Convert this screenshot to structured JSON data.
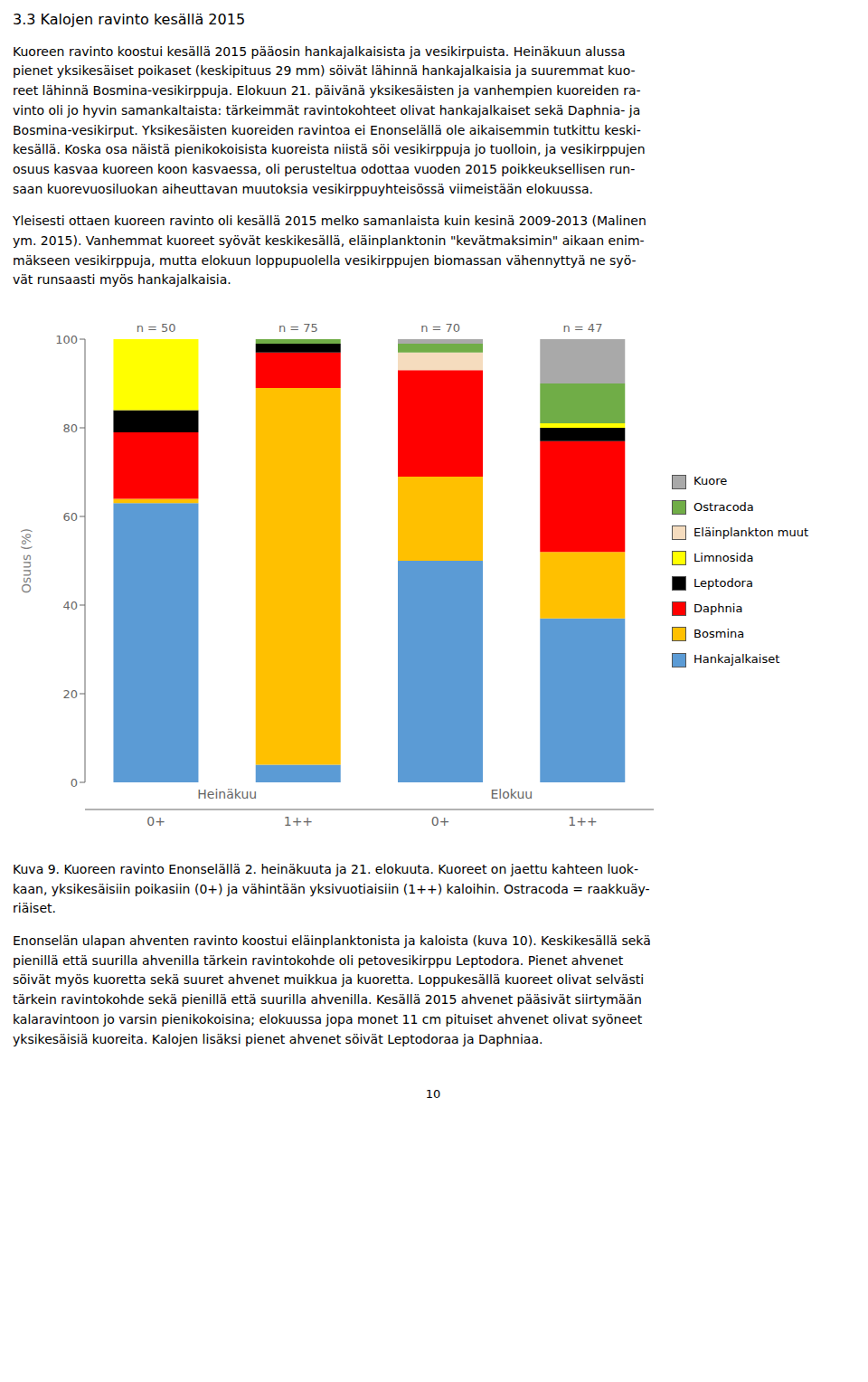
{
  "chart_data": {
    "type": "bar",
    "title": "3.3 Kalojen ravinto kesällä 2015",
    "categories": [
      "0+",
      "1++",
      "0+",
      "1++"
    ],
    "bar_labels": [
      "n = 50",
      "n = 75",
      "n = 70",
      "n = 47"
    ],
    "groups": [
      "Heinäkuu",
      "Heinäkuu",
      "Elokuu",
      "Elokuu"
    ],
    "ylabel": "Osuus (%)",
    "ylim": [
      0,
      100
    ],
    "yticks": [
      0,
      20,
      40,
      60,
      80,
      100
    ],
    "stacked": true,
    "grid": false,
    "legend": "right",
    "series": [
      {
        "name": "Hankajalkaiset",
        "color": "#5B9BD5",
        "values": [
          63,
          4,
          50,
          37
        ]
      },
      {
        "name": "Bosmina",
        "color": "#FFC000",
        "values": [
          1,
          85,
          19,
          15
        ]
      },
      {
        "name": "Daphnia",
        "color": "#FF0000",
        "values": [
          15,
          8,
          24,
          25
        ]
      },
      {
        "name": "Leptodora",
        "color": "#000000",
        "values": [
          5,
          2,
          0,
          3
        ]
      },
      {
        "name": "Limnosida",
        "color": "#FFFF00",
        "values": [
          16,
          0,
          0,
          1
        ]
      },
      {
        "name": "Eläinplankton muut",
        "color": "#F5DCBE",
        "values": [
          0,
          0,
          4,
          0
        ]
      },
      {
        "name": "Ostracoda",
        "color": "#70AD47",
        "values": [
          0,
          1,
          2,
          9
        ]
      },
      {
        "name": "Kuore",
        "color": "#A9A9A9",
        "values": [
          0,
          0,
          1,
          10
        ]
      }
    ]
  },
  "page": {
    "text_before": [
      [
        "Kuoreen ravinto koostui kesällä 2015 pääosin hankajalkaisista ja vesikirpuista. Heinäkuun alussa",
        "pienet yksikesäiset poikaset (keskipituus 29 mm) söivät lähinnä hankajalkaisia ja suuremmat kuo-",
        "reet lähinnä Bosmina-vesikirppuja. Elokuun 21. päivänä yksikesäisten ja vanhempien kuoreiden ra-",
        "vinto oli jo hyvin samankaltaista: tärkeimmät ravintokohteet olivat hankajalkaiset sekä Daphnia- ja",
        "Bosmina-vesikirput. Yksikesäisten kuoreiden ravintoa ei Enonselällä ole aikaisemmin tutkittu keski-",
        "kesällä. Koska osa näistä pienikokoisista kuoreista niistä söi vesikirppuja jo tuolloin, ja vesikirppujen",
        "osuus kasvaa kuoreen koon kasvaessa, oli perusteltua odottaa vuoden 2015 poikkeuksellisen run-",
        "saan kuorevuosiluokan aiheuttavan muutoksia vesikirppuyhteisössä viimeistään elokuussa."
      ],
      [
        "Yleisesti ottaen kuoreen ravinto oli kesällä 2015 melko samanlaista kuin kesinä 2009-2013 (Malinen",
        "ym. 2015). Vanhemmat kuoreet syövät keskikesällä, eläinplanktonin \"kevätmaksimin\" aikaan enim-",
        "mäkseen vesikirppuja, mutta elokuun loppupuolella vesikirppujen biomassan vähennyttyä ne syö-",
        "vät runsaasti myös hankajalkaisia."
      ]
    ],
    "caption": [
      "Kuva 9. Kuoreen ravinto Enonselällä 2. heinäkuuta ja 21. elokuuta. Kuoreet on jaettu kahteen luok-",
      "kaan, yksikesäisiin poikasiin (0+) ja vähintään yksivuotiaisiin (1++) kaloihin. Ostracoda = raakkuäy-",
      "riäiset."
    ],
    "text_after": [
      [
        "Enonselän ulapan ahventen ravinto koostui eläinplanktonista ja kaloista (kuva 10). Keskikesällä sekä",
        "pienillä että suurilla ahvenilla tärkein ravintokohde oli petovesikirppu Leptodora. Pienet ahvenet",
        "söivät myös kuoretta sekä suuret ahvenet muikkua ja kuoretta. Loppukesällä kuoreet olivat selvästi",
        "tärkein ravintokohde sekä pienillä että suurilla ahvenilla. Kesällä 2015 ahvenet pääsivät siirtymään",
        "kalaravintoon jo varsin pienikokoisina; elokuussa jopa monet 11 cm pituiset ahvenet olivat syöneet",
        "yksikesäisiä kuoreita. Kalojen lisäksi pienet ahvenet söivät Leptodoraa ja Daphniaa."
      ]
    ],
    "page_number": "10"
  }
}
